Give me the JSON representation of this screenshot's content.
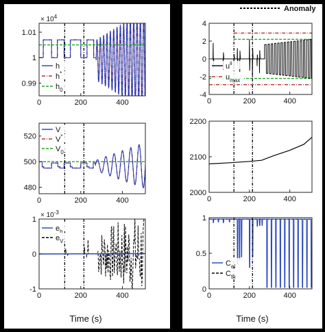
{
  "legend_top": {
    "label": "Anomaly"
  },
  "x_axis_title": "Time (s)",
  "anomaly_times": [
    123,
    215
  ],
  "colors": {
    "anomaly": "#000000",
    "black_line": "#000000",
    "blue": "#1f3dbf",
    "red": "#b03030",
    "green": "#1fa51f",
    "cth": "#000000"
  },
  "chart_data": [
    {
      "id": "h",
      "type": "line",
      "multiplier_label": "× 10",
      "multiplier_exp": "4",
      "xlim": [
        0,
        510
      ],
      "ylim": [
        0.985,
        1.0135
      ],
      "xticks": [
        0,
        200,
        400
      ],
      "xtick_labels": [
        "0",
        "200",
        "400"
      ],
      "yticks": [
        0.99,
        1.0,
        1.01
      ],
      "ytick_labels": [
        "0.99",
        "1",
        "1.01"
      ],
      "series": [
        {
          "name": "h",
          "sub": "",
          "sup": "",
          "color": "#1f3dbf",
          "style": "solid"
        },
        {
          "name": "h",
          "sub": "",
          "sup": "*",
          "color": "#b03030",
          "style": "dashdot"
        },
        {
          "name": "h",
          "sub": "0",
          "sup": "",
          "color": "#1fa51f",
          "style": "dashed",
          "points": [
            [
              0,
              1.005
            ],
            [
              510,
              1.005
            ]
          ]
        }
      ],
      "segments": [
        [
          0,
          20,
          1.0
        ],
        [
          20,
          30,
          1.007
        ],
        [
          30,
          60,
          1.007
        ],
        [
          60,
          72,
          1.0
        ],
        [
          72,
          88,
          1.0
        ],
        [
          88,
          100,
          1.007
        ],
        [
          100,
          120,
          1.007
        ],
        [
          120,
          132,
          1.0
        ],
        [
          132,
          150,
          1.0
        ],
        [
          150,
          162,
          1.007
        ],
        [
          162,
          200,
          1.007
        ],
        [
          200,
          212,
          1.0
        ],
        [
          212,
          230,
          1.0
        ],
        [
          230,
          242,
          1.007
        ],
        [
          242,
          262,
          1.007
        ],
        [
          262,
          274,
          1.0
        ]
      ],
      "osc": {
        "start": 274,
        "end": 510,
        "center": 0.999,
        "amp_start": 0.008,
        "amp_end": 0.02,
        "period": 16
      }
    },
    {
      "id": "u",
      "type": "line",
      "xlim": [
        0,
        510
      ],
      "ylim": [
        -4,
        4
      ],
      "xticks": [
        0,
        200,
        400
      ],
      "xtick_labels": [
        "0",
        "200",
        "400"
      ],
      "yticks": [
        -4,
        -2,
        0,
        2,
        4
      ],
      "ytick_labels": [
        "-4",
        "-2",
        "0",
        "2",
        "4"
      ],
      "series": [
        {
          "name": "u",
          "sub": "",
          "sup": "ii",
          "color": "#000000",
          "style": "solid"
        },
        {
          "name": "u",
          "sub": "max",
          "sup": "",
          "color": "#b03030",
          "style": "dashdot",
          "points": [
            [
              123,
              2.9
            ],
            [
              510,
              2.9
            ]
          ]
        },
        {
          "name": "u",
          "sub": "",
          "sup": "",
          "color": "#b03030",
          "style": "dashdot",
          "points": [
            [
              0,
              -2.9
            ],
            [
              510,
              -2.9
            ]
          ]
        },
        {
          "name": "u",
          "sub": "",
          "sup": "",
          "color": "#1fa51f",
          "style": "dashed",
          "points": [
            [
              123,
              2.2
            ],
            [
              510,
              2.2
            ]
          ]
        },
        {
          "name": "u",
          "sub": "",
          "sup": "",
          "color": "#1fa51f",
          "style": "dashed",
          "points": [
            [
              0,
              -2.2
            ],
            [
              510,
              -2.2
            ]
          ]
        }
      ],
      "spikes": [
        [
          20,
          1.8
        ],
        [
          70,
          -1.2
        ],
        [
          123,
          -0.9
        ],
        [
          140,
          1.2
        ],
        [
          152,
          -1.5
        ],
        [
          200,
          2.2
        ],
        [
          215,
          -2.0
        ],
        [
          238,
          -0.8
        ],
        [
          250,
          -1.6
        ]
      ],
      "osc": {
        "start": 275,
        "end": 510,
        "center": 0,
        "amp_start": 1.6,
        "amp_end": 2.2,
        "period": 16
      }
    },
    {
      "id": "V",
      "type": "line",
      "xlim": [
        0,
        510
      ],
      "ylim": [
        475,
        530
      ],
      "xticks": [
        0,
        200,
        400
      ],
      "xtick_labels": [
        "0",
        "200",
        "400"
      ],
      "yticks": [
        480,
        500,
        520
      ],
      "ytick_labels": [
        "480",
        "500",
        "520"
      ],
      "series": [
        {
          "name": "V",
          "sub": "",
          "sup": "",
          "color": "#1f3dbf",
          "style": "solid"
        },
        {
          "name": "V",
          "sub": "",
          "sup": "*",
          "color": "#b03030",
          "style": "dashdot"
        },
        {
          "name": "V",
          "sub": "0",
          "sup": "",
          "color": "#1fa51f",
          "style": "dashed",
          "points": [
            [
              0,
              500
            ],
            [
              510,
              500
            ]
          ]
        }
      ],
      "segments": [
        [
          0,
          15,
          500
        ],
        [
          15,
          22,
          496
        ],
        [
          22,
          60,
          495
        ],
        [
          60,
          70,
          499
        ],
        [
          70,
          90,
          499
        ],
        [
          90,
          100,
          496
        ],
        [
          100,
          120,
          495
        ],
        [
          120,
          132,
          499
        ],
        [
          132,
          150,
          499
        ],
        [
          150,
          160,
          496
        ],
        [
          160,
          200,
          495
        ],
        [
          200,
          212,
          499
        ],
        [
          212,
          230,
          499
        ],
        [
          230,
          240,
          496
        ],
        [
          240,
          260,
          495
        ],
        [
          260,
          270,
          499
        ]
      ],
      "osc": {
        "start": 270,
        "end": 510,
        "center": 497,
        "amp_start": 4,
        "amp_end": 18,
        "period": 40
      }
    },
    {
      "id": "cost",
      "type": "line",
      "xlim": [
        0,
        510
      ],
      "ylim": [
        2000,
        2200
      ],
      "xticks": [
        0,
        200,
        400
      ],
      "xtick_labels": [
        "0",
        "200",
        "400"
      ],
      "yticks": [
        2000,
        2100,
        2200
      ],
      "ytick_labels": [
        "2000",
        "2100",
        "2200"
      ],
      "series": [
        {
          "name": "",
          "sub": "",
          "sup": "",
          "color": "#000000",
          "style": "solid",
          "points": [
            [
              0,
              2080
            ],
            [
              100,
              2083
            ],
            [
              200,
              2087
            ],
            [
              260,
              2090
            ],
            [
              320,
              2103
            ],
            [
              400,
              2118
            ],
            [
              470,
              2135
            ],
            [
              510,
              2155
            ]
          ]
        }
      ]
    },
    {
      "id": "e",
      "type": "line",
      "multiplier_label": "× 10",
      "multiplier_exp": "-3",
      "xlim": [
        0,
        510
      ],
      "ylim": [
        -1,
        1
      ],
      "xticks": [
        0,
        200,
        400
      ],
      "xtick_labels": [
        "0",
        "200",
        "400"
      ],
      "yticks": [
        -1,
        0,
        1
      ],
      "ytick_labels": [
        "-1",
        "0",
        "1"
      ],
      "series": [
        {
          "name": "e",
          "sub": "h",
          "sup": "",
          "color": "#1f3dbf",
          "style": "solid",
          "points": [
            [
              0,
              0
            ],
            [
              510,
              0.01
            ]
          ]
        },
        {
          "name": "e",
          "sub": "V",
          "sup": "",
          "color": "#000000",
          "style": "dashed"
        }
      ],
      "dashed_spikes": [
        [
          128,
          0.15
        ],
        [
          138,
          -0.05
        ],
        [
          218,
          0.2
        ],
        [
          228,
          -0.1
        ],
        [
          235,
          0.4
        ]
      ],
      "osc": {
        "start": 280,
        "end": 510,
        "center": 0,
        "amp_start": 0.5,
        "amp_end": 1.0,
        "period": 7
      }
    },
    {
      "id": "C",
      "type": "line",
      "xlim": [
        0,
        510
      ],
      "ylim": [
        0,
        1
      ],
      "xticks": [
        0,
        200,
        400
      ],
      "xtick_labels": [
        "0",
        "200",
        "400"
      ],
      "yticks": [
        0,
        0.5,
        1
      ],
      "ytick_labels": [
        "0",
        "0.5",
        "1"
      ],
      "series": [
        {
          "name": "C",
          "sub": "el",
          "sup": "",
          "color": "#1f3dbf",
          "style": "solid"
        },
        {
          "name": "C",
          "sub": "th",
          "sup": "",
          "color": "#000000",
          "style": "dashed",
          "points": [
            [
              0,
              0.98
            ],
            [
              510,
              0.98
            ]
          ]
        }
      ],
      "dips": [
        [
          20,
          0.93
        ],
        [
          45,
          0.94
        ],
        [
          70,
          0.93
        ],
        [
          100,
          0.94
        ],
        [
          140,
          0.35
        ],
        [
          150,
          0.4
        ],
        [
          160,
          0.45
        ],
        [
          200,
          0.3
        ],
        [
          215,
          0.45
        ],
        [
          238,
          0.88
        ],
        [
          250,
          0.89
        ],
        [
          262,
          0.89
        ]
      ],
      "osc": {
        "start": 275,
        "end": 510,
        "low": 0.02,
        "high": 0.98,
        "period": 22
      }
    }
  ]
}
